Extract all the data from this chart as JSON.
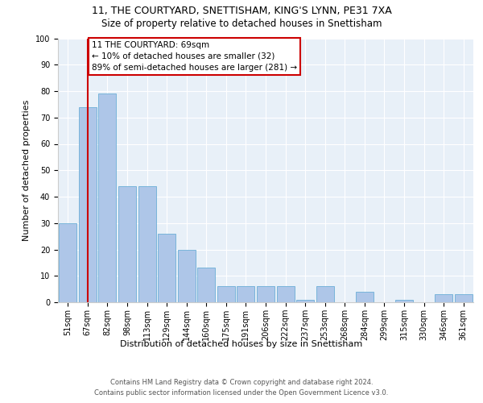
{
  "title1": "11, THE COURTYARD, SNETTISHAM, KING'S LYNN, PE31 7XA",
  "title2": "Size of property relative to detached houses in Snettisham",
  "xlabel": "Distribution of detached houses by size in Snettisham",
  "ylabel": "Number of detached properties",
  "categories": [
    "51sqm",
    "67sqm",
    "82sqm",
    "98sqm",
    "113sqm",
    "129sqm",
    "144sqm",
    "160sqm",
    "175sqm",
    "191sqm",
    "206sqm",
    "222sqm",
    "237sqm",
    "253sqm",
    "268sqm",
    "284sqm",
    "299sqm",
    "315sqm",
    "330sqm",
    "346sqm",
    "361sqm"
  ],
  "values": [
    30,
    74,
    79,
    44,
    44,
    26,
    20,
    13,
    6,
    6,
    6,
    6,
    1,
    6,
    0,
    4,
    0,
    1,
    0,
    3,
    3
  ],
  "bar_color": "#aec6e8",
  "bar_edge_color": "#6baed6",
  "highlight_x": "67sqm",
  "highlight_line_color": "#cc0000",
  "annotation_text": "11 THE COURTYARD: 69sqm\n← 10% of detached houses are smaller (32)\n89% of semi-detached houses are larger (281) →",
  "annotation_box_color": "#ffffff",
  "annotation_box_edge_color": "#cc0000",
  "footer_text": "Contains HM Land Registry data © Crown copyright and database right 2024.\nContains public sector information licensed under the Open Government Licence v3.0.",
  "ylim": [
    0,
    100
  ],
  "yticks": [
    0,
    10,
    20,
    30,
    40,
    50,
    60,
    70,
    80,
    90,
    100
  ],
  "bg_color": "#e8f0f8",
  "fig_bg_color": "#ffffff",
  "title1_fontsize": 9,
  "title2_fontsize": 8.5,
  "xlabel_fontsize": 8,
  "ylabel_fontsize": 8,
  "tick_fontsize": 7,
  "annot_fontsize": 7.5,
  "footer_fontsize": 6
}
